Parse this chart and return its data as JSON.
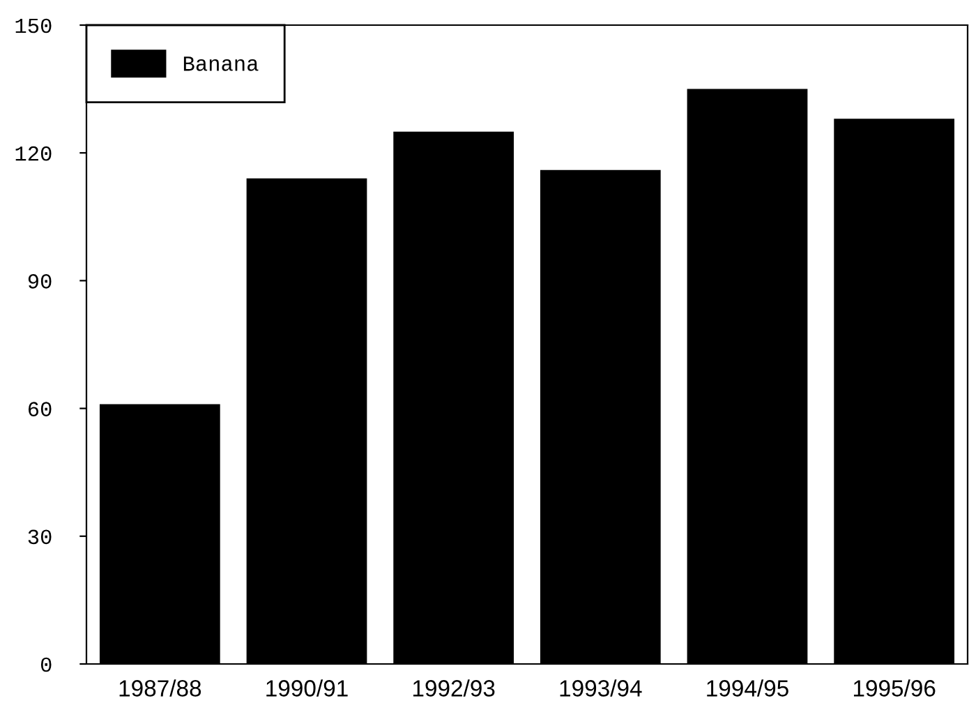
{
  "chart_data": {
    "type": "bar",
    "categories": [
      "1987/88",
      "1990/91",
      "1992/93",
      "1993/94",
      "1994/95",
      "1995/96"
    ],
    "series": [
      {
        "name": "Banana",
        "color": "#000000",
        "values": [
          61,
          114,
          125,
          116,
          135,
          128
        ]
      }
    ],
    "ylim": [
      0,
      150
    ],
    "yticks": [
      0,
      30,
      60,
      90,
      120,
      150
    ],
    "legend": "top left",
    "grid": false
  }
}
